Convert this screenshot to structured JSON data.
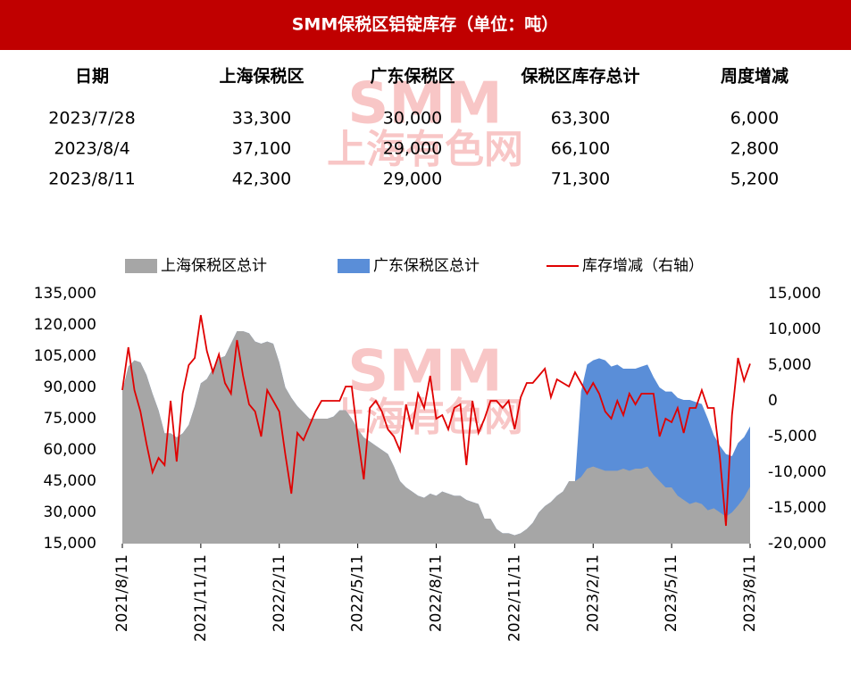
{
  "header": {
    "title": "SMM保税区铝锭库存（单位：吨）"
  },
  "watermark": {
    "brand": "SMM",
    "name": "上海有色网"
  },
  "table": {
    "header": [
      "日期",
      "上海保税区",
      "广东保税区",
      "保税区库存总计",
      "周度增减"
    ],
    "rows": [
      [
        "2023/7/28",
        "33,300",
        "30,000",
        "63,300",
        "6,000"
      ],
      [
        "2023/8/4",
        "37,100",
        "29,000",
        "66,100",
        "2,800"
      ],
      [
        "2023/8/11",
        "42,300",
        "29,000",
        "71,300",
        "5,200"
      ]
    ]
  },
  "chart_data": {
    "type": "stacked-area-line",
    "categories": [
      "2021/8/11",
      null,
      null,
      null,
      null,
      null,
      null,
      null,
      null,
      null,
      null,
      null,
      null,
      "2021/11/11",
      null,
      null,
      null,
      null,
      null,
      null,
      null,
      null,
      null,
      null,
      null,
      null,
      "2022/2/11",
      null,
      null,
      null,
      null,
      null,
      null,
      null,
      null,
      null,
      null,
      null,
      null,
      "2022/5/11",
      null,
      null,
      null,
      null,
      null,
      null,
      null,
      null,
      null,
      null,
      null,
      null,
      "2022/8/11",
      null,
      null,
      null,
      null,
      null,
      null,
      null,
      null,
      null,
      null,
      null,
      null,
      "2022/11/11",
      null,
      null,
      null,
      null,
      null,
      null,
      null,
      null,
      null,
      null,
      null,
      null,
      "2023/2/11",
      null,
      null,
      null,
      null,
      null,
      null,
      null,
      null,
      null,
      null,
      null,
      null,
      "2023/5/11",
      null,
      null,
      null,
      null,
      null,
      null,
      null,
      null,
      null,
      null,
      null,
      null,
      "2023/8/11"
    ],
    "series": [
      {
        "name": "上海保税区总计",
        "color": "#a6a6a6",
        "kind": "area",
        "values": [
          88000,
          100000,
          103000,
          102000,
          96000,
          87000,
          79000,
          68000,
          68000,
          66000,
          68000,
          72000,
          81000,
          92000,
          94000,
          99000,
          104000,
          105000,
          111000,
          117000,
          117000,
          116000,
          112000,
          111000,
          112000,
          111000,
          102000,
          90000,
          85000,
          81000,
          78000,
          75000,
          75000,
          75000,
          75000,
          76000,
          79000,
          79000,
          75000,
          70000,
          66000,
          64000,
          62000,
          60000,
          58000,
          52000,
          45000,
          42000,
          40000,
          38000,
          37000,
          39000,
          38000,
          40000,
          39000,
          38000,
          38000,
          36000,
          35000,
          34000,
          27000,
          27000,
          22000,
          20000,
          20000,
          19000,
          20000,
          22000,
          25000,
          30000,
          33000,
          35000,
          38000,
          40000,
          45000,
          45000,
          47000,
          51000,
          52000,
          51000,
          50000,
          50000,
          50000,
          51000,
          50000,
          51000,
          51000,
          52000,
          48000,
          45000,
          42000,
          42000,
          38000,
          36000,
          34000,
          35000,
          34000,
          31000,
          32000,
          30000,
          28000,
          30000,
          33300,
          37100,
          42300
        ]
      },
      {
        "name": "广东保税区总计",
        "color": "#5a8ed8",
        "kind": "area",
        "values": [
          0,
          0,
          0,
          0,
          0,
          0,
          0,
          0,
          0,
          0,
          0,
          0,
          0,
          0,
          0,
          0,
          0,
          0,
          0,
          0,
          0,
          0,
          0,
          0,
          0,
          0,
          0,
          0,
          0,
          0,
          0,
          0,
          0,
          0,
          0,
          0,
          0,
          0,
          0,
          0,
          0,
          0,
          0,
          0,
          0,
          0,
          0,
          0,
          0,
          0,
          0,
          0,
          0,
          0,
          0,
          0,
          0,
          0,
          0,
          0,
          0,
          0,
          0,
          0,
          0,
          0,
          0,
          0,
          0,
          0,
          0,
          0,
          0,
          0,
          0,
          0,
          41000,
          50000,
          51000,
          53000,
          53000,
          50000,
          51000,
          48000,
          49000,
          48000,
          49000,
          49000,
          47000,
          45000,
          46000,
          46000,
          47000,
          48000,
          50000,
          48000,
          48000,
          44000,
          35000,
          32000,
          30000,
          27000,
          30000,
          29000,
          29000
        ]
      },
      {
        "name": "库存增减（右轴）",
        "color": "#e00000",
        "kind": "line",
        "axis": "y2",
        "values": [
          1500,
          7500,
          1500,
          -1500,
          -6000,
          -10000,
          -8000,
          -9000,
          0,
          -8500,
          1000,
          5000,
          6000,
          12000,
          7000,
          4000,
          6500,
          2500,
          1000,
          8500,
          3500,
          -500,
          -1500,
          -5000,
          1500,
          0,
          -1500,
          -7500,
          -13000,
          -4500,
          -5500,
          -3500,
          -1500,
          0,
          0,
          0,
          0,
          2000,
          2000,
          -5000,
          -11000,
          -1000,
          0,
          -1500,
          -4000,
          -5000,
          -7000,
          -500,
          -4000,
          1000,
          -1000,
          3500,
          -2500,
          -2000,
          -4000,
          -1000,
          -500,
          -9000,
          0,
          -4500,
          -2500,
          0,
          0,
          -1000,
          0,
          -4000,
          500,
          2500,
          2500,
          3500,
          4500,
          500,
          3000,
          2500,
          2000,
          4000,
          2500,
          1000,
          2500,
          1000,
          -1500,
          -2500,
          0,
          -2000,
          1000,
          -500,
          1000,
          1000,
          1000,
          -5000,
          -2500,
          -3000,
          -1000,
          -4500,
          -1000,
          -1000,
          1500,
          -1000,
          -1000,
          -8000,
          -17500,
          -2000,
          6000,
          2800,
          5200
        ]
      }
    ],
    "ylim": [
      15000,
      135000
    ],
    "yticks": [
      {
        "value": 15000,
        "label": "15,000"
      },
      {
        "value": 30000,
        "label": "30,000"
      },
      {
        "value": 45000,
        "label": "45,000"
      },
      {
        "value": 60000,
        "label": "60,000"
      },
      {
        "value": 75000,
        "label": "75,000"
      },
      {
        "value": 90000,
        "label": "90,000"
      },
      {
        "value": 105000,
        "label": "105,000"
      },
      {
        "value": 120000,
        "label": "120,000"
      },
      {
        "value": 135000,
        "label": "135,000"
      }
    ],
    "y2lim": [
      -20000,
      15000
    ],
    "y2ticks": [
      {
        "value": -20000,
        "label": "-20,000"
      },
      {
        "value": -15000,
        "label": "-15,000"
      },
      {
        "value": -10000,
        "label": "-10,000"
      },
      {
        "value": -5000,
        "label": "-5,000"
      },
      0,
      {
        "value": 5000,
        "label": "5,000"
      },
      {
        "value": 10000,
        "label": "10,000"
      },
      {
        "value": 15000,
        "label": "15,000"
      }
    ],
    "legend": "top",
    "stacked": true
  }
}
